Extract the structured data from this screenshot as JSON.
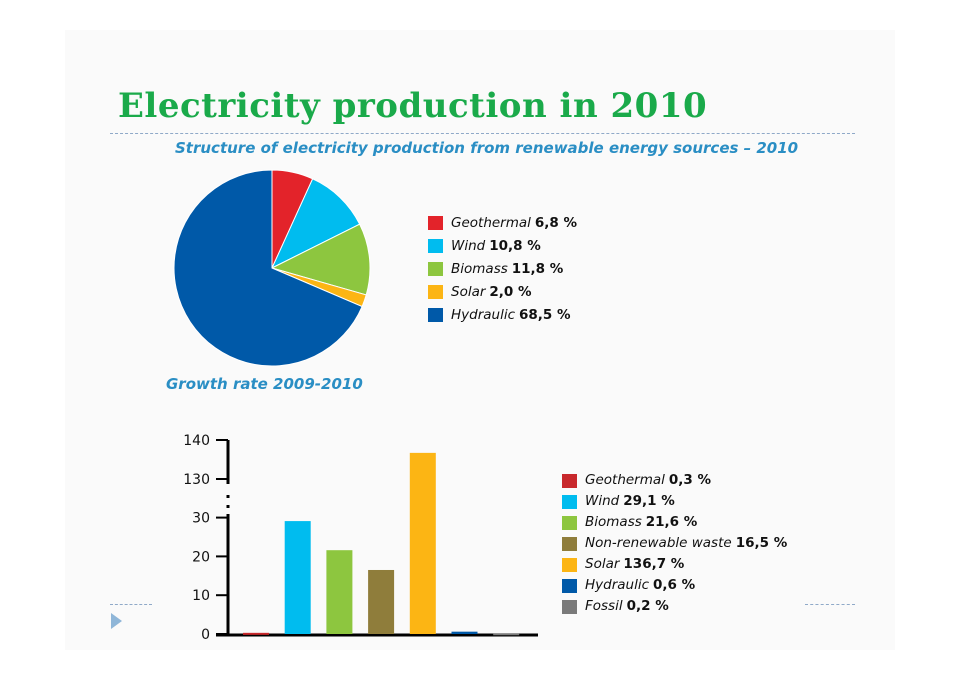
{
  "title": "Electricity production in 2010",
  "chart_data": [
    {
      "type": "pie",
      "title": "Structure of electricity production from renewable energy sources – 2010",
      "legend_position": "right",
      "slices": [
        {
          "name": "Geothermal",
          "label": "6,8 %",
          "value": 6.8,
          "color": "#e3232a"
        },
        {
          "name": "Wind",
          "label": "10,8 %",
          "value": 10.8,
          "color": "#00bcef"
        },
        {
          "name": "Biomass",
          "label": "11,8 %",
          "value": 11.8,
          "color": "#8dc63f"
        },
        {
          "name": "Solar",
          "label": "2,0 %",
          "value": 2.0,
          "color": "#fcb514"
        },
        {
          "name": "Hydraulic",
          "label": "68,5 %",
          "value": 68.5,
          "color": "#0059a8"
        }
      ]
    },
    {
      "type": "bar",
      "title": "Growth rate 2009-2010",
      "legend_position": "right",
      "y_axis_broken": true,
      "yticks": [
        0,
        10,
        20,
        30,
        130,
        140
      ],
      "ylim": [
        0,
        140
      ],
      "categories": [
        "Geothermal",
        "Wind",
        "Biomass",
        "Non-renewable waste",
        "Solar",
        "Hydraulic",
        "Fossil"
      ],
      "values": [
        0.3,
        29.1,
        21.6,
        16.5,
        136.7,
        0.6,
        0.2
      ],
      "labels": [
        "0,3 %",
        "29,1 %",
        "21,6 %",
        "16,5 %",
        "136,7 %",
        "0,6 %",
        "0,2 %"
      ],
      "colors": [
        "#c8282c",
        "#00bcef",
        "#8dc63f",
        "#8f7d3b",
        "#fcb514",
        "#0059a8",
        "#7a7a7a"
      ]
    }
  ]
}
